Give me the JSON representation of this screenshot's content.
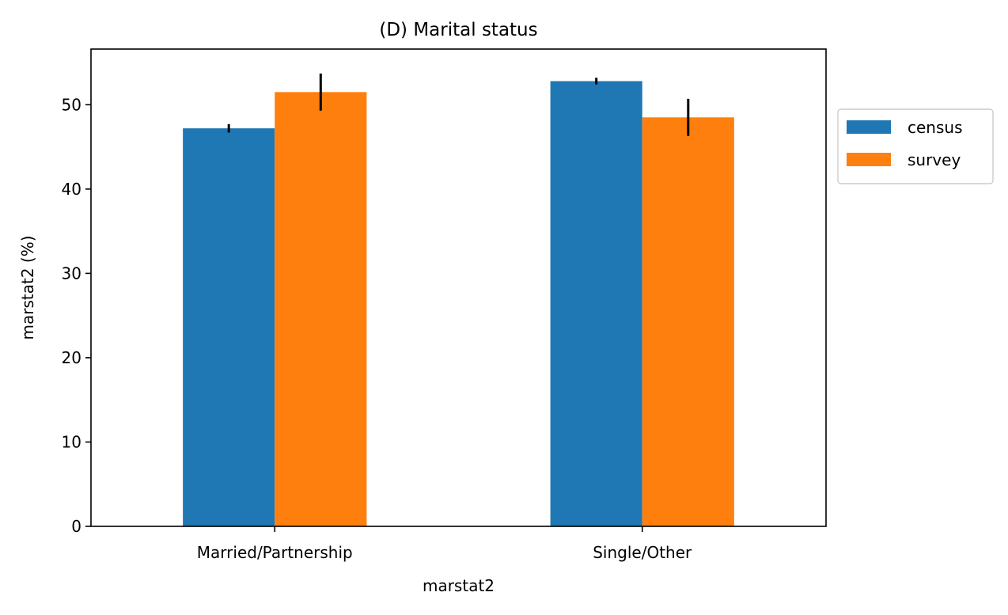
{
  "chart_data": {
    "type": "bar",
    "title": "(D) Marital status",
    "xlabel": "marstat2",
    "ylabel": "marstat2 (%)",
    "categories": [
      "Married/Partnership",
      "Single/Other"
    ],
    "series": [
      {
        "name": "census",
        "color": "#1f77b4",
        "values": [
          47.2,
          52.8
        ],
        "errors": [
          0.5,
          0.4
        ]
      },
      {
        "name": "survey",
        "color": "#ff7f0e",
        "values": [
          51.5,
          48.5
        ],
        "errors": [
          2.2,
          2.2
        ]
      }
    ],
    "ylim": [
      0,
      56.6
    ],
    "yticks": [
      0,
      10,
      20,
      30,
      40,
      50
    ],
    "grid": false,
    "legend": {
      "placement": "outside-right"
    }
  }
}
